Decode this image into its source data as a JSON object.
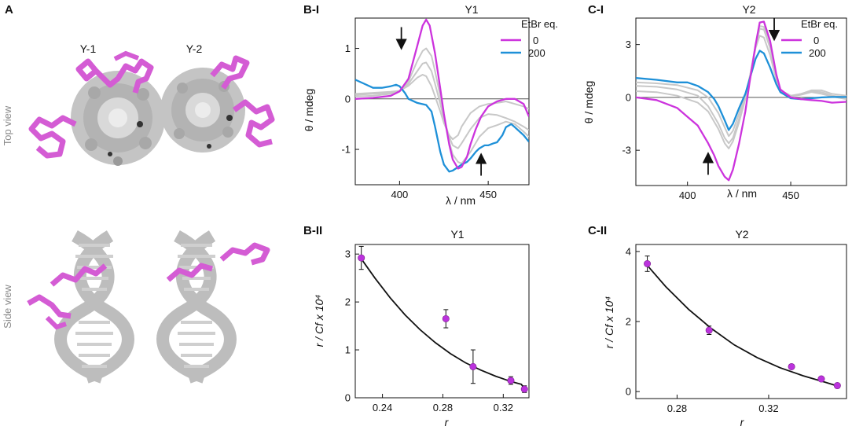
{
  "colors": {
    "magenta": "#cc33dd",
    "blue": "#1e90d8",
    "grey": "#c8c8c8",
    "axis": "#111111",
    "marker": "#bb33dd"
  },
  "panel_a": {
    "label": "A",
    "col1": "Y-1",
    "col2": "Y-2",
    "row1": "Top view",
    "row2": "Side view"
  },
  "chart_data": [
    {
      "id": "B-I",
      "type": "line",
      "panel": "B-I",
      "title": "Y1",
      "xlabel": "λ / nm",
      "ylabel": "θ / mdeg",
      "xlim": [
        375,
        473
      ],
      "ylim": [
        -1.7,
        1.6
      ],
      "xticks": [
        "400",
        "450"
      ],
      "yticks": [
        "1",
        "0",
        "-1"
      ],
      "legend": {
        "title": "EtBr eq.",
        "entries": [
          "0",
          "200"
        ]
      },
      "series": [
        {
          "name": "0",
          "color": "magenta",
          "x": [
            375,
            385,
            395,
            400,
            405,
            410,
            413,
            415,
            417,
            420,
            423,
            425,
            428,
            430,
            433,
            435,
            438,
            440,
            443,
            446,
            450,
            455,
            460,
            465,
            470,
            473
          ],
          "y": [
            0.0,
            0.02,
            0.06,
            0.15,
            0.4,
            1.05,
            1.45,
            1.57,
            1.45,
            0.9,
            0.2,
            -0.3,
            -0.9,
            -1.2,
            -1.38,
            -1.35,
            -1.15,
            -0.9,
            -0.6,
            -0.35,
            -0.15,
            -0.05,
            0.0,
            0.0,
            -0.1,
            -0.35
          ]
        },
        {
          "name": "200",
          "color": "blue",
          "x": [
            375,
            380,
            385,
            390,
            395,
            398,
            400,
            403,
            405,
            410,
            415,
            418,
            420,
            423,
            425,
            428,
            430,
            433,
            435,
            438,
            440,
            443,
            445,
            448,
            450,
            453,
            455,
            458,
            460,
            463,
            465,
            470,
            473
          ],
          "y": [
            0.38,
            0.3,
            0.22,
            0.22,
            0.25,
            0.28,
            0.25,
            0.12,
            0.0,
            -0.08,
            -0.12,
            -0.25,
            -0.55,
            -1.05,
            -1.3,
            -1.44,
            -1.42,
            -1.35,
            -1.3,
            -1.25,
            -1.18,
            -1.05,
            -0.98,
            -0.92,
            -0.92,
            -0.88,
            -0.86,
            -0.72,
            -0.56,
            -0.5,
            -0.56,
            -0.72,
            -0.85
          ]
        },
        {
          "name": "gray-1",
          "color": "grey",
          "x": [
            375,
            385,
            395,
            400,
            405,
            410,
            413,
            415,
            418,
            420,
            423,
            425,
            428,
            430,
            433,
            435,
            440,
            445,
            450,
            455,
            460,
            465,
            470,
            473
          ],
          "y": [
            0.05,
            0.06,
            0.1,
            0.15,
            0.35,
            0.75,
            0.95,
            1.0,
            0.85,
            0.55,
            0.05,
            -0.35,
            -0.85,
            -1.1,
            -1.25,
            -1.28,
            -1.05,
            -0.75,
            -0.58,
            -0.52,
            -0.45,
            -0.5,
            -0.65,
            -0.75
          ]
        },
        {
          "name": "gray-2",
          "color": "grey",
          "x": [
            375,
            385,
            395,
            400,
            405,
            410,
            413,
            415,
            418,
            420,
            423,
            425,
            428,
            430,
            433,
            435,
            440,
            445,
            450,
            455,
            460,
            465,
            470,
            473
          ],
          "y": [
            0.08,
            0.1,
            0.12,
            0.15,
            0.3,
            0.55,
            0.7,
            0.72,
            0.55,
            0.3,
            -0.1,
            -0.4,
            -0.75,
            -0.92,
            -0.98,
            -0.88,
            -0.6,
            -0.38,
            -0.3,
            -0.32,
            -0.38,
            -0.45,
            -0.55,
            -0.62
          ]
        },
        {
          "name": "gray-3",
          "color": "grey",
          "x": [
            375,
            385,
            395,
            400,
            405,
            410,
            413,
            415,
            418,
            420,
            423,
            425,
            428,
            430,
            433,
            435,
            440,
            445,
            450,
            455,
            460,
            465,
            470,
            473
          ],
          "y": [
            0.1,
            0.12,
            0.14,
            0.16,
            0.26,
            0.42,
            0.48,
            0.45,
            0.25,
            0.05,
            -0.25,
            -0.48,
            -0.72,
            -0.8,
            -0.72,
            -0.55,
            -0.28,
            -0.15,
            -0.1,
            -0.08,
            -0.05,
            -0.1,
            -0.15,
            -0.2
          ]
        }
      ],
      "annotations": [
        {
          "type": "arrow-down",
          "x": 401,
          "y": 1.25
        },
        {
          "type": "arrow-up",
          "x": 446,
          "y": -1.35
        }
      ]
    },
    {
      "id": "C-I",
      "type": "line",
      "panel": "C-I",
      "title": "Y2",
      "xlabel": "λ / nm",
      "ylabel": "θ / mdeg",
      "xlim": [
        375,
        477
      ],
      "ylim": [
        -5.0,
        4.5
      ],
      "xticks": [
        "400",
        "450"
      ],
      "yticks": [
        "3",
        "0",
        "-3"
      ],
      "legend": {
        "title": "EtBr eq.",
        "entries": [
          "0",
          "200"
        ]
      },
      "series": [
        {
          "name": "0",
          "color": "magenta",
          "x": [
            375,
            385,
            395,
            400,
            405,
            410,
            413,
            415,
            418,
            420,
            422,
            425,
            428,
            430,
            433,
            435,
            437,
            440,
            443,
            445,
            450,
            455,
            460,
            465,
            470,
            477
          ],
          "y": [
            0.0,
            -0.15,
            -0.6,
            -1.1,
            -1.6,
            -2.6,
            -3.3,
            -3.9,
            -4.5,
            -4.7,
            -4.1,
            -2.6,
            -0.8,
            0.8,
            3.0,
            4.25,
            4.3,
            3.2,
            1.3,
            0.45,
            0.0,
            -0.1,
            -0.15,
            -0.2,
            -0.3,
            -0.25
          ]
        },
        {
          "name": "200",
          "color": "blue",
          "x": [
            375,
            385,
            395,
            400,
            405,
            410,
            413,
            415,
            418,
            420,
            422,
            425,
            428,
            430,
            433,
            435,
            437,
            440,
            443,
            445,
            450,
            455,
            460,
            465,
            470,
            477
          ],
          "y": [
            1.1,
            1.0,
            0.85,
            0.85,
            0.65,
            0.3,
            -0.1,
            -0.5,
            -1.3,
            -1.85,
            -1.5,
            -0.6,
            0.2,
            1.0,
            2.2,
            2.65,
            2.5,
            1.7,
            0.75,
            0.3,
            -0.05,
            -0.1,
            -0.05,
            0.0,
            0.02,
            0.02
          ]
        },
        {
          "name": "gray-1",
          "color": "grey",
          "x": [
            375,
            385,
            395,
            405,
            410,
            415,
            418,
            420,
            422,
            425,
            428,
            430,
            433,
            435,
            437,
            440,
            443,
            445,
            450,
            455,
            460,
            465,
            470,
            477
          ],
          "y": [
            0.65,
            0.6,
            0.45,
            0.1,
            -0.5,
            -1.5,
            -2.3,
            -2.6,
            -2.3,
            -1.2,
            -0.05,
            1.0,
            2.9,
            3.9,
            3.85,
            2.8,
            1.2,
            0.4,
            0.1,
            0.2,
            0.35,
            0.3,
            0.1,
            0.0
          ]
        },
        {
          "name": "gray-2",
          "color": "grey",
          "x": [
            375,
            385,
            395,
            405,
            410,
            415,
            418,
            420,
            422,
            425,
            428,
            430,
            433,
            435,
            437,
            440,
            443,
            445,
            450,
            455,
            460,
            465,
            470,
            477
          ],
          "y": [
            0.35,
            0.3,
            0.1,
            -0.3,
            -0.8,
            -1.8,
            -2.6,
            -2.9,
            -2.5,
            -1.4,
            -0.1,
            1.0,
            3.0,
            4.05,
            4.0,
            2.9,
            1.2,
            0.4,
            0.05,
            0.15,
            0.3,
            0.2,
            0.05,
            -0.1
          ]
        },
        {
          "name": "gray-3",
          "color": "grey",
          "x": [
            375,
            385,
            395,
            405,
            410,
            415,
            418,
            420,
            422,
            425,
            428,
            430,
            433,
            435,
            437,
            440,
            443,
            445,
            450,
            455,
            460,
            465,
            470,
            477
          ],
          "y": [
            0.85,
            0.8,
            0.7,
            0.4,
            0.0,
            -0.9,
            -1.7,
            -2.2,
            -1.9,
            -0.9,
            0.1,
            1.1,
            2.8,
            3.5,
            3.4,
            2.4,
            1.0,
            0.35,
            0.05,
            0.2,
            0.4,
            0.4,
            0.2,
            0.1
          ]
        }
      ],
      "annotations": [
        {
          "type": "arrow-down",
          "x": 442,
          "y": 4.0
        },
        {
          "type": "arrow-up",
          "x": 410,
          "y": -3.9
        }
      ]
    },
    {
      "id": "B-II",
      "type": "scatter",
      "panel": "B-II",
      "title": "Y1",
      "xlabel": "r",
      "ylabel": "r / Cf x 10⁴",
      "xlim": [
        0.222,
        0.337
      ],
      "ylim": [
        0,
        3.2
      ],
      "xticks": [
        "0.24",
        "0.28",
        "0.32"
      ],
      "yticks": [
        "3",
        "2",
        "1",
        "0"
      ],
      "points": [
        {
          "x": 0.226,
          "y": 2.92,
          "err": 0.24
        },
        {
          "x": 0.282,
          "y": 1.65,
          "err": 0.19
        },
        {
          "x": 0.3,
          "y": 0.65,
          "err": 0.35
        },
        {
          "x": 0.325,
          "y": 0.36,
          "err": 0.08
        },
        {
          "x": 0.334,
          "y": 0.18,
          "err": 0.07
        }
      ],
      "fit": {
        "x": [
          0.226,
          0.235,
          0.245,
          0.255,
          0.265,
          0.275,
          0.285,
          0.295,
          0.305,
          0.315,
          0.325,
          0.332,
          0.334
        ],
        "y": [
          2.9,
          2.5,
          2.09,
          1.73,
          1.42,
          1.15,
          0.92,
          0.73,
          0.58,
          0.45,
          0.34,
          0.28,
          0.18
        ]
      }
    },
    {
      "id": "C-II",
      "type": "scatter",
      "panel": "C-II",
      "title": "Y2",
      "xlabel": "r",
      "ylabel": "r / Cf x 10⁴",
      "xlim": [
        0.262,
        0.354
      ],
      "ylim": [
        -0.2,
        4.2
      ],
      "xticks": [
        "0.28",
        "0.32"
      ],
      "yticks": [
        "4",
        "2",
        "0"
      ],
      "points": [
        {
          "x": 0.267,
          "y": 3.65,
          "err": 0.22
        },
        {
          "x": 0.294,
          "y": 1.75,
          "err": 0.12
        },
        {
          "x": 0.33,
          "y": 0.71,
          "err": 0.06
        },
        {
          "x": 0.343,
          "y": 0.36,
          "err": 0.05
        },
        {
          "x": 0.35,
          "y": 0.17,
          "err": 0.04
        }
      ],
      "fit": {
        "x": [
          0.267,
          0.275,
          0.285,
          0.295,
          0.305,
          0.315,
          0.325,
          0.335,
          0.345,
          0.35
        ],
        "y": [
          3.6,
          3.0,
          2.35,
          1.8,
          1.33,
          0.97,
          0.68,
          0.45,
          0.26,
          0.16
        ]
      }
    }
  ]
}
